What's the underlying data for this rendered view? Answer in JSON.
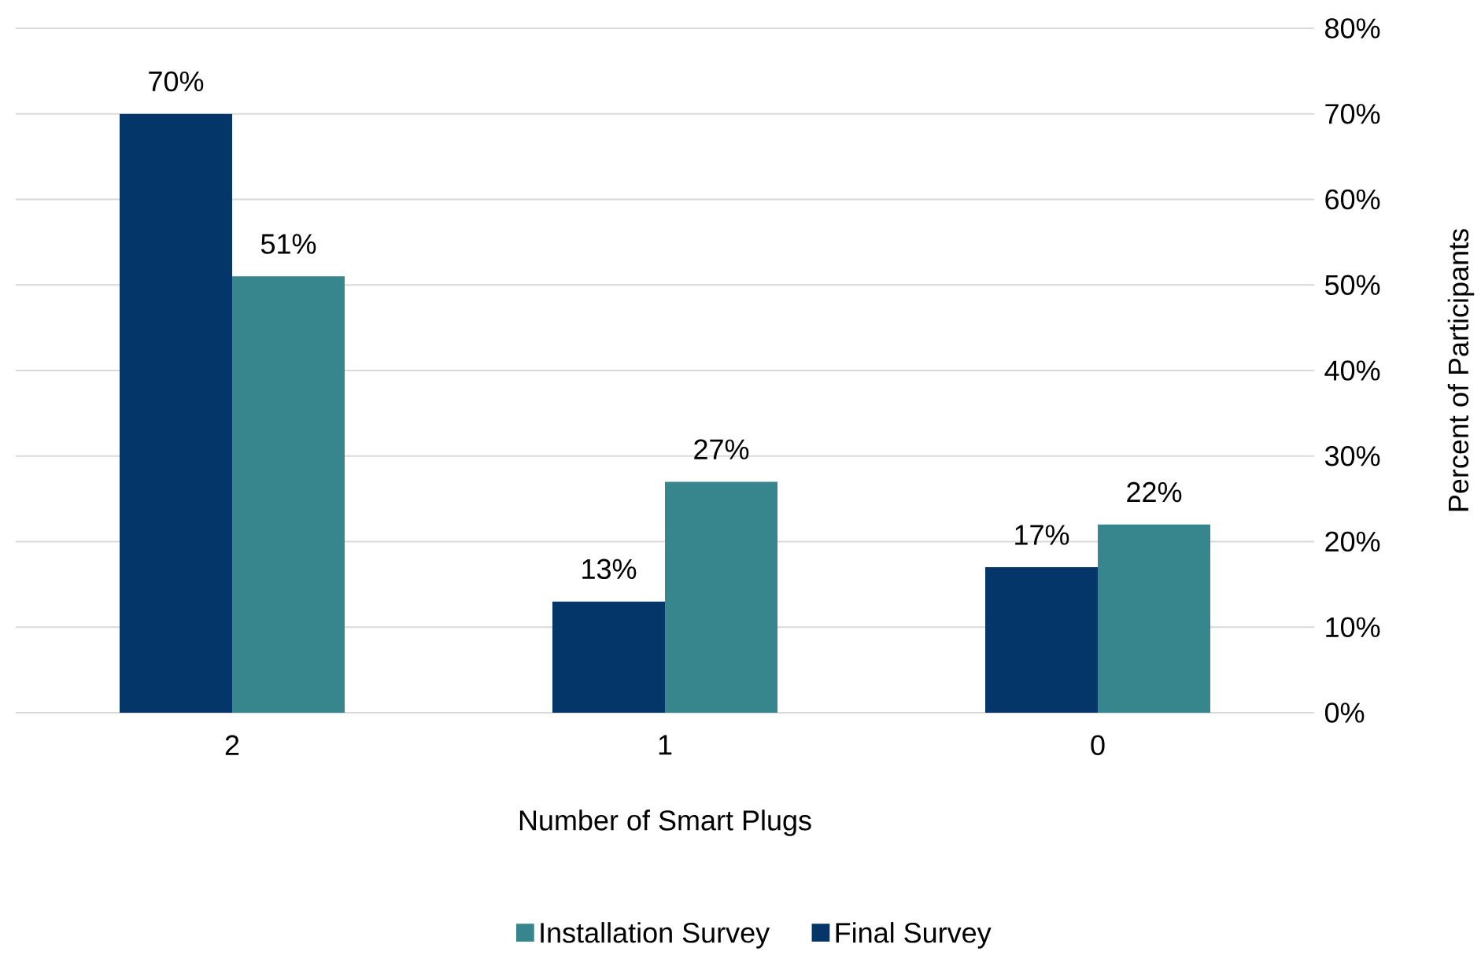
{
  "chart_data": {
    "type": "bar",
    "xlabel": "Number of Smart Plugs",
    "ylabel": "Percent of Participants",
    "categories": [
      "2",
      "1",
      "0"
    ],
    "series": [
      {
        "name": "Final Survey",
        "color": "#05366a",
        "values": [
          70,
          13,
          17
        ],
        "value_labels": [
          "70%",
          "13%",
          "17%"
        ]
      },
      {
        "name": "Installation Survey",
        "color": "#37868e",
        "values": [
          51,
          27,
          22
        ],
        "value_labels": [
          "51%",
          "27%",
          "22%"
        ]
      }
    ],
    "ylim": [
      0,
      80
    ],
    "yticks": [
      {
        "value": 0,
        "label": "0%"
      },
      {
        "value": 10,
        "label": "10%"
      },
      {
        "value": 20,
        "label": "20%"
      },
      {
        "value": 30,
        "label": "30%"
      },
      {
        "value": 40,
        "label": "40%"
      },
      {
        "value": 50,
        "label": "50%"
      },
      {
        "value": 60,
        "label": "60%"
      },
      {
        "value": 70,
        "label": "70%"
      },
      {
        "value": 80,
        "label": "80%"
      }
    ],
    "grid": "y",
    "legend": "bottom"
  }
}
